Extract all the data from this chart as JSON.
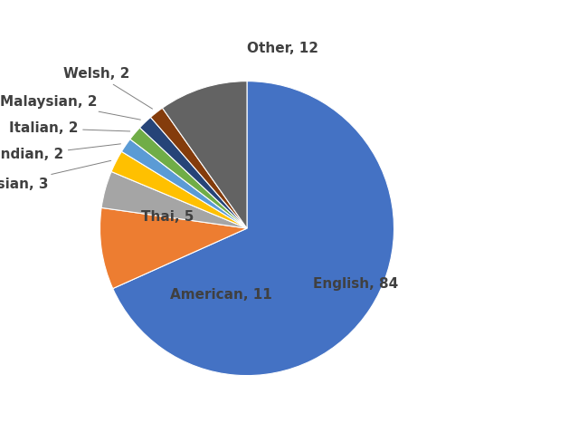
{
  "labels": [
    "English",
    "American",
    "Thai",
    "Russian",
    "Indian",
    "Italian",
    "Malaysian",
    "Welsh",
    "Other"
  ],
  "values": [
    84,
    11,
    5,
    3,
    2,
    2,
    2,
    2,
    12
  ],
  "colors": [
    "#4472C4",
    "#ED7D31",
    "#A5A5A5",
    "#FFC000",
    "#5B9BD5",
    "#70AD47",
    "#264478",
    "#843C0C",
    "#636363"
  ],
  "label_fontsize": 11,
  "label_color": "#404040",
  "label_fontweight": "bold"
}
